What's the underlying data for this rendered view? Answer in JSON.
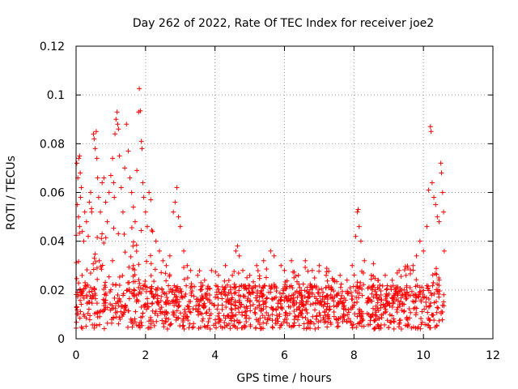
{
  "chart_data": {
    "type": "scatter",
    "title": "Day 262 of 2022, Rate Of TEC Index for receiver joe2",
    "xlabel": "GPS time / hours",
    "ylabel": "ROTI / TECUs",
    "xlim": [
      0,
      12
    ],
    "ylim": [
      0,
      0.12
    ],
    "x_ticks": [
      0,
      2,
      4,
      6,
      8,
      10,
      12
    ],
    "x_tick_labels": [
      "0",
      "2",
      "4",
      "6",
      "8",
      "10",
      "12"
    ],
    "y_ticks": [
      0,
      0.02,
      0.04,
      0.06,
      0.08,
      0.1,
      0.12
    ],
    "y_tick_labels": [
      "0",
      "0.02",
      "0.04",
      "0.06",
      "0.08",
      "0.1",
      "0.12"
    ],
    "grid": true,
    "marker": "+",
    "color": "#ff0000",
    "series": [
      {
        "name": "joe2",
        "points": [
          [
            0.02,
            0.072
          ],
          [
            0.05,
            0.066
          ],
          [
            0.08,
            0.074
          ],
          [
            0.1,
            0.075
          ],
          [
            0.12,
            0.068
          ],
          [
            0.15,
            0.062
          ],
          [
            0.04,
            0.055
          ],
          [
            0.07,
            0.05
          ],
          [
            0.1,
            0.046
          ],
          [
            0.13,
            0.058
          ],
          [
            0.18,
            0.044
          ],
          [
            0.22,
            0.04
          ],
          [
            0.25,
            0.052
          ],
          [
            0.3,
            0.048
          ],
          [
            0.35,
            0.042
          ],
          [
            0.38,
            0.056
          ],
          [
            0.42,
            0.06
          ],
          [
            0.45,
            0.052
          ],
          [
            0.5,
            0.084
          ],
          [
            0.52,
            0.082
          ],
          [
            0.55,
            0.078
          ],
          [
            0.58,
            0.085
          ],
          [
            0.6,
            0.074
          ],
          [
            0.62,
            0.066
          ],
          [
            0.65,
            0.058
          ],
          [
            0.7,
            0.052
          ],
          [
            0.75,
            0.064
          ],
          [
            0.8,
            0.066
          ],
          [
            0.85,
            0.056
          ],
          [
            0.9,
            0.048
          ],
          [
            0.95,
            0.06
          ],
          [
            1.0,
            0.067
          ],
          [
            1.05,
            0.074
          ],
          [
            1.08,
            0.064
          ],
          [
            1.1,
            0.058
          ],
          [
            1.12,
            0.084
          ],
          [
            1.15,
            0.09
          ],
          [
            1.18,
            0.093
          ],
          [
            1.2,
            0.088
          ],
          [
            1.22,
            0.086
          ],
          [
            1.25,
            0.075
          ],
          [
            1.3,
            0.062
          ],
          [
            1.35,
            0.052
          ],
          [
            1.4,
            0.07
          ],
          [
            1.45,
            0.088
          ],
          [
            1.5,
            0.077
          ],
          [
            1.55,
            0.066
          ],
          [
            1.6,
            0.06
          ],
          [
            1.65,
            0.054
          ],
          [
            1.7,
            0.048
          ],
          [
            1.75,
            0.069
          ],
          [
            1.8,
            0.093
          ],
          [
            1.82,
            0.1026
          ],
          [
            1.85,
            0.0935
          ],
          [
            1.88,
            0.081
          ],
          [
            1.9,
            0.078
          ],
          [
            1.92,
            0.064
          ],
          [
            1.95,
            0.058
          ],
          [
            2.0,
            0.052
          ],
          [
            2.05,
            0.046
          ],
          [
            2.1,
            0.06
          ],
          [
            2.15,
            0.057
          ],
          [
            2.2,
            0.044
          ],
          [
            2.3,
            0.04
          ],
          [
            2.4,
            0.036
          ],
          [
            2.5,
            0.032
          ],
          [
            2.6,
            0.03
          ],
          [
            2.7,
            0.034
          ],
          [
            2.8,
            0.052
          ],
          [
            2.85,
            0.056
          ],
          [
            2.9,
            0.062
          ],
          [
            2.95,
            0.05
          ],
          [
            3.0,
            0.046
          ],
          [
            3.1,
            0.036
          ],
          [
            3.2,
            0.03
          ],
          [
            3.3,
            0.028
          ],
          [
            3.5,
            0.026
          ],
          [
            3.7,
            0.024
          ],
          [
            3.9,
            0.028
          ],
          [
            4.1,
            0.026
          ],
          [
            4.3,
            0.03
          ],
          [
            4.5,
            0.026
          ],
          [
            4.6,
            0.036
          ],
          [
            4.65,
            0.038
          ],
          [
            4.7,
            0.034
          ],
          [
            4.8,
            0.028
          ],
          [
            5.0,
            0.026
          ],
          [
            5.2,
            0.03
          ],
          [
            5.4,
            0.032
          ],
          [
            5.6,
            0.036
          ],
          [
            5.7,
            0.034
          ],
          [
            5.9,
            0.03
          ],
          [
            6.0,
            0.028
          ],
          [
            6.2,
            0.032
          ],
          [
            6.4,
            0.026
          ],
          [
            6.6,
            0.032
          ],
          [
            6.8,
            0.028
          ],
          [
            7.0,
            0.03
          ],
          [
            7.2,
            0.026
          ],
          [
            7.4,
            0.024
          ],
          [
            7.6,
            0.026
          ],
          [
            7.8,
            0.024
          ],
          [
            7.95,
            0.03
          ],
          [
            8.05,
            0.042
          ],
          [
            8.1,
            0.052
          ],
          [
            8.12,
            0.053
          ],
          [
            8.15,
            0.046
          ],
          [
            8.2,
            0.04
          ],
          [
            8.3,
            0.032
          ],
          [
            8.5,
            0.026
          ],
          [
            8.7,
            0.024
          ],
          [
            8.9,
            0.026
          ],
          [
            9.1,
            0.024
          ],
          [
            9.3,
            0.028
          ],
          [
            9.5,
            0.026
          ],
          [
            9.7,
            0.03
          ],
          [
            9.8,
            0.034
          ],
          [
            9.9,
            0.04
          ],
          [
            10.0,
            0.036
          ],
          [
            10.1,
            0.046
          ],
          [
            10.15,
            0.061
          ],
          [
            10.2,
            0.087
          ],
          [
            10.22,
            0.085
          ],
          [
            10.25,
            0.064
          ],
          [
            10.3,
            0.058
          ],
          [
            10.35,
            0.055
          ],
          [
            10.4,
            0.05
          ],
          [
            10.45,
            0.048
          ],
          [
            10.5,
            0.072
          ],
          [
            10.52,
            0.068
          ],
          [
            10.55,
            0.06
          ],
          [
            10.58,
            0.052
          ],
          [
            10.6,
            0.036
          ]
        ]
      }
    ]
  }
}
